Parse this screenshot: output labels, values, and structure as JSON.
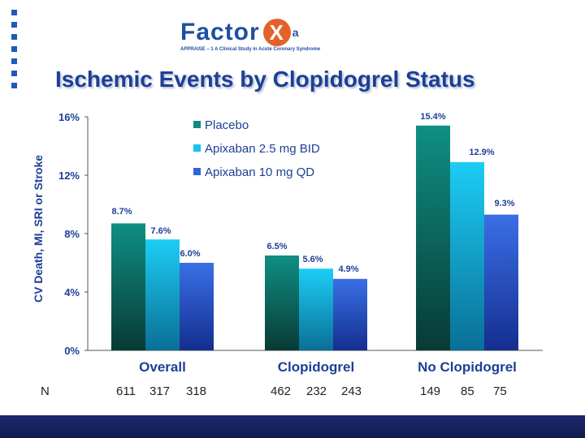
{
  "header": {
    "logo_text": "Factor",
    "logo_x": "X",
    "logo_a": "a",
    "subtitle": "APPRAISE – 1   A Clinical Study in Acute Coronary Syndrome"
  },
  "title": "Ischemic Events by Clopidogrel Status",
  "n_row": {
    "label": "N",
    "groups": [
      [
        "611",
        "317",
        "318"
      ],
      [
        "462",
        "232",
        "243"
      ],
      [
        "149",
        "85",
        "75"
      ]
    ]
  },
  "chart_data": {
    "type": "bar",
    "title": "Ischemic Events by Clopidogrel Status",
    "ylabel": "CV Death, MI, SRI or Stroke",
    "xlabel": "",
    "ylim": [
      0,
      16
    ],
    "yticks": [
      0,
      4,
      8,
      12,
      16
    ],
    "ytick_labels": [
      "0%",
      "4%",
      "8%",
      "12%",
      "16%"
    ],
    "categories": [
      "Overall",
      "Clopidogrel",
      "No Clopidogrel"
    ],
    "series": [
      {
        "name": "Placebo",
        "values": [
          8.7,
          6.5,
          15.4
        ],
        "labels": [
          "8.7%",
          "6.5%",
          "15.4%"
        ],
        "color": "#0f8a7e"
      },
      {
        "name": "Apixaban 2.5 mg BID",
        "values": [
          7.6,
          5.6,
          12.9
        ],
        "labels": [
          "7.6%",
          "5.6%",
          "12.9%"
        ],
        "color": "#19c2ee"
      },
      {
        "name": "Apixaban 10 mg QD",
        "values": [
          6.0,
          4.9,
          9.3
        ],
        "labels": [
          "6.0%",
          "4.9%",
          "9.3%"
        ],
        "color": "#2f63d8"
      }
    ],
    "legend_position": "top-center"
  }
}
